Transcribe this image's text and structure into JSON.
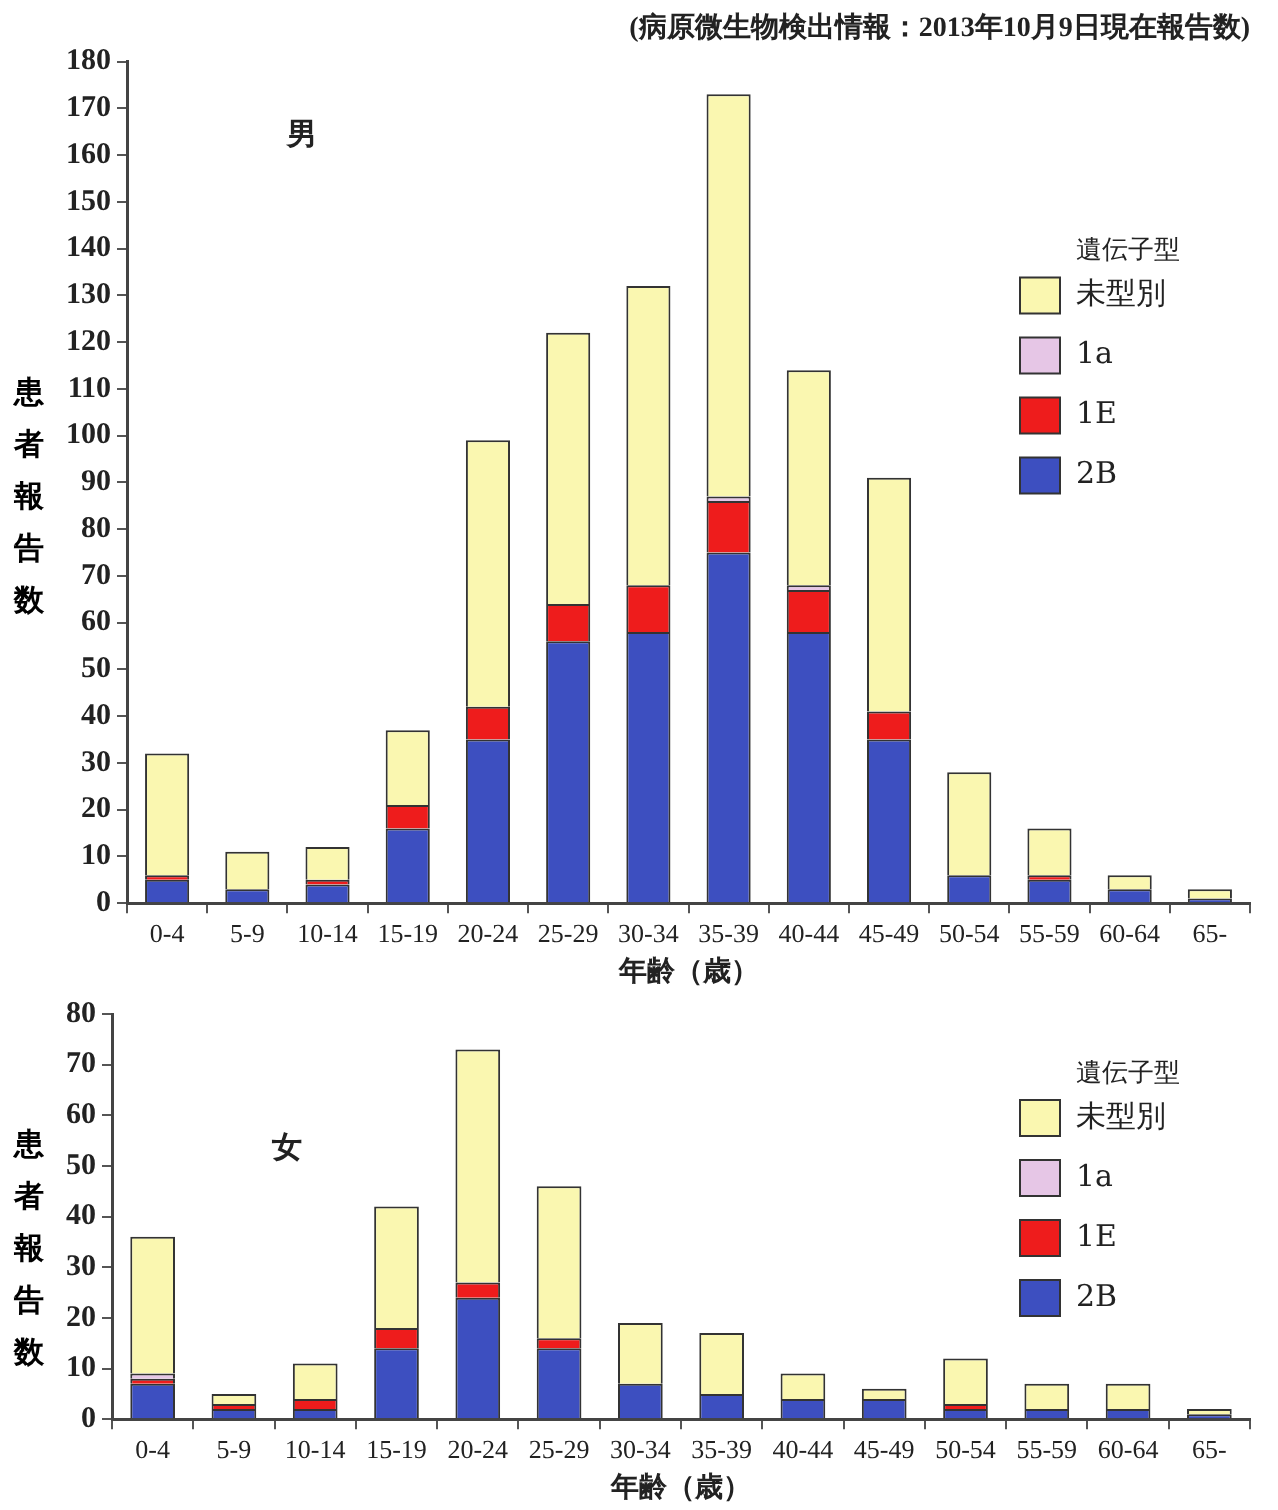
{
  "chart_data": [
    {
      "type": "bar",
      "title": "(病原微生物検出情報：2013年10月9日現在報告数)",
      "xlabel": "年齢（歳）",
      "ylabel": "患者報告数",
      "legend_title": "遺伝子型",
      "annotations": [
        "男"
      ],
      "stacked": true,
      "legend": "top right",
      "grid": false,
      "categories": [
        "0-4",
        "5-9",
        "10-14",
        "15-19",
        "20-24",
        "25-29",
        "30-34",
        "35-39",
        "40-44",
        "45-49",
        "50-54",
        "55-59",
        "60-64",
        "65-"
      ],
      "ylim": [
        0,
        180
      ],
      "yticks": [
        0,
        10,
        20,
        30,
        40,
        50,
        60,
        70,
        80,
        90,
        100,
        110,
        120,
        130,
        140,
        150,
        160,
        170,
        180
      ],
      "series": [
        {
          "name": "2B",
          "color": "#3d4fc0",
          "values": [
            5,
            3,
            4,
            16,
            35,
            56,
            58,
            75,
            58,
            35,
            6,
            5,
            3,
            1
          ]
        },
        {
          "name": "1E",
          "color": "#ee1c1c",
          "values": [
            1,
            0,
            1,
            5,
            7,
            8,
            10,
            11,
            9,
            6,
            0,
            1,
            0,
            0
          ]
        },
        {
          "name": "1a",
          "color": "#e6c6e6",
          "values": [
            0,
            0,
            0,
            0,
            0,
            0,
            0,
            1,
            1,
            0,
            0,
            0,
            0,
            0
          ]
        },
        {
          "name": "未型別",
          "color": "#faf7b0",
          "values": [
            26,
            8,
            7,
            16,
            57,
            58,
            64,
            86,
            46,
            50,
            22,
            10,
            3,
            2
          ]
        }
      ]
    },
    {
      "type": "bar",
      "xlabel": "年齢（歳）",
      "ylabel": "患者報告数",
      "legend_title": "遺伝子型",
      "annotations": [
        "女"
      ],
      "stacked": true,
      "legend": "top right",
      "grid": false,
      "categories": [
        "0-4",
        "5-9",
        "10-14",
        "15-19",
        "20-24",
        "25-29",
        "30-34",
        "35-39",
        "40-44",
        "45-49",
        "50-54",
        "55-59",
        "60-64",
        "65-"
      ],
      "ylim": [
        0,
        80
      ],
      "yticks": [
        0,
        10,
        20,
        30,
        40,
        50,
        60,
        70,
        80
      ],
      "series": [
        {
          "name": "2B",
          "color": "#3d4fc0",
          "values": [
            7,
            2,
            2,
            14,
            24,
            14,
            7,
            5,
            4,
            4,
            2,
            2,
            2,
            1
          ]
        },
        {
          "name": "1E",
          "color": "#ee1c1c",
          "values": [
            1,
            1,
            2,
            4,
            3,
            2,
            0,
            0,
            0,
            0,
            1,
            0,
            0,
            0
          ]
        },
        {
          "name": "1a",
          "color": "#e6c6e6",
          "values": [
            1,
            0,
            0,
            0,
            0,
            0,
            0,
            0,
            0,
            0,
            0,
            0,
            0,
            0
          ]
        },
        {
          "name": "未型別",
          "color": "#faf7b0",
          "values": [
            27,
            2,
            7,
            24,
            46,
            30,
            12,
            12,
            5,
            2,
            9,
            5,
            5,
            1
          ]
        }
      ]
    }
  ]
}
